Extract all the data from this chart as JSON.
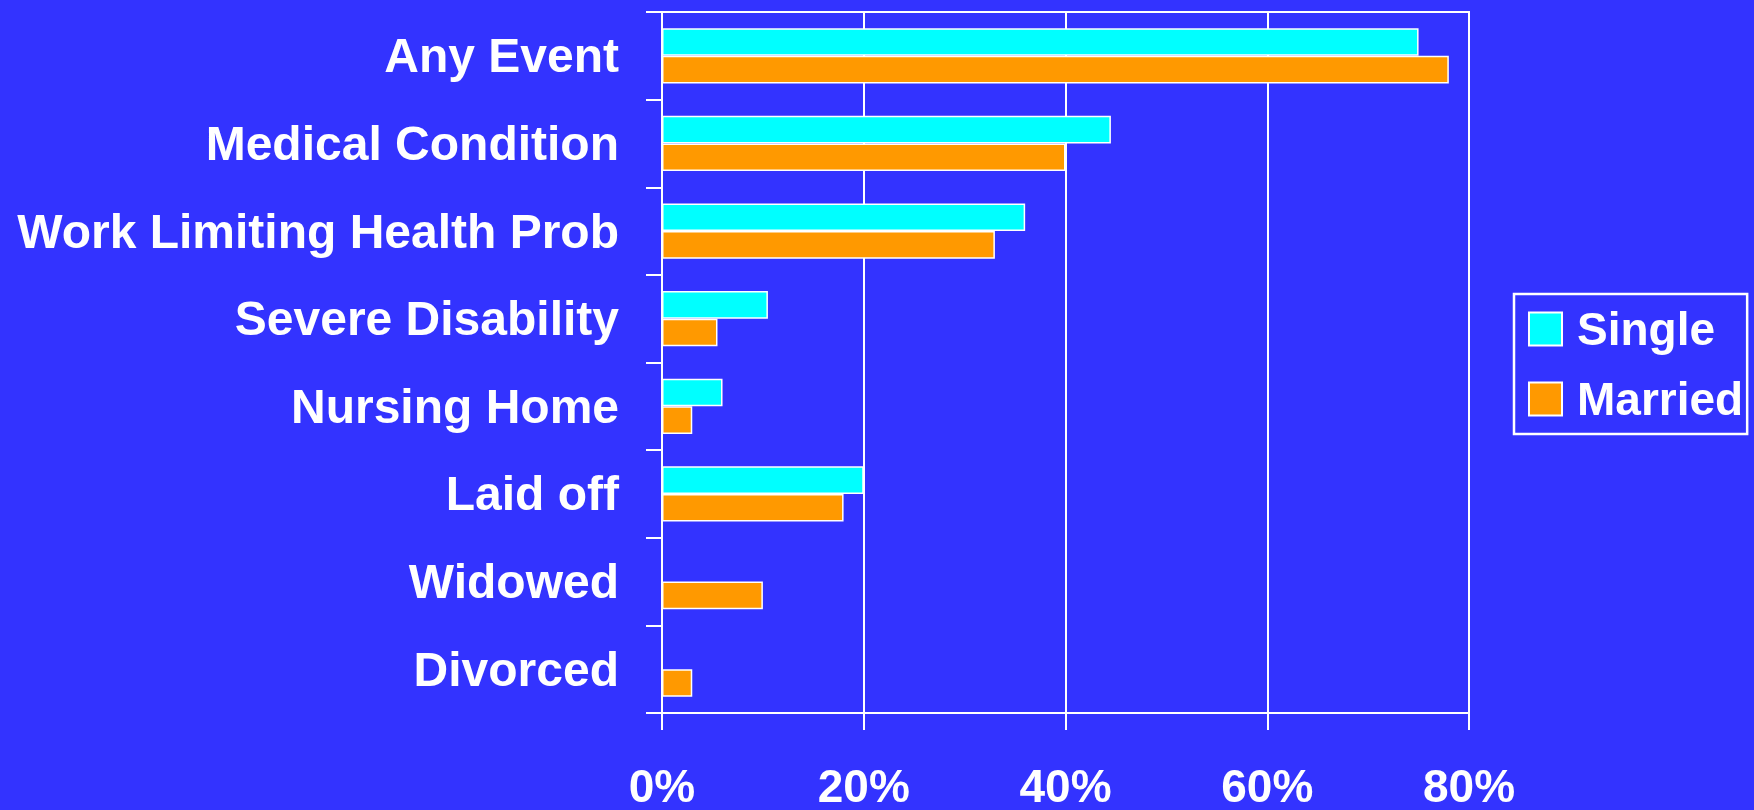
{
  "chart_data": {
    "type": "bar",
    "orientation": "horizontal",
    "categories": [
      "Any Event",
      "Medical Condition",
      "Work Limiting Health Prob",
      "Severe Disability",
      "Nursing Home",
      "Laid off",
      "Widowed",
      "Divorced"
    ],
    "series": [
      {
        "name": "Single",
        "color": "#00ffff",
        "values": [
          75,
          44.5,
          36,
          10.5,
          6,
          20,
          null,
          null
        ]
      },
      {
        "name": "Married",
        "color": "#ff9900",
        "values": [
          78,
          40,
          33,
          5.5,
          3,
          18,
          10,
          3
        ]
      }
    ],
    "xlim": [
      0,
      80
    ],
    "xticks": [
      {
        "value": 0,
        "label": "0%"
      },
      {
        "value": 20,
        "label": "20%"
      },
      {
        "value": 40,
        "label": "40%"
      },
      {
        "value": 60,
        "label": "60%"
      },
      {
        "value": 80,
        "label": "80%"
      }
    ],
    "grid": "x",
    "legend": "right"
  }
}
